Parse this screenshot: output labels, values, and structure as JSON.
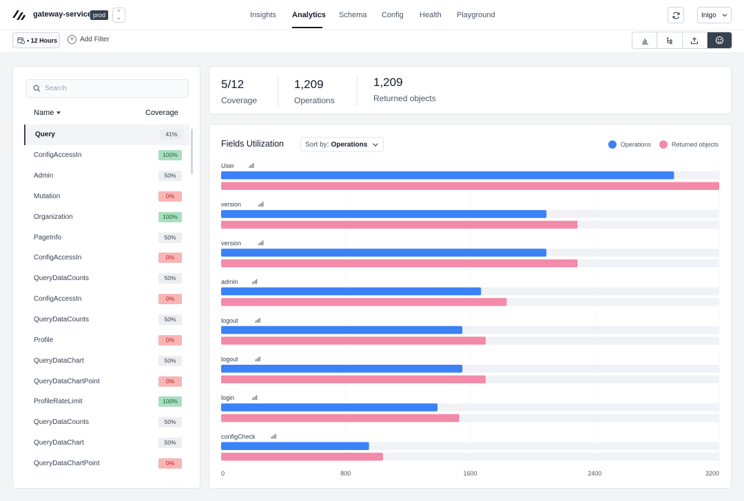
{
  "header": {
    "service_name": "gateway-service",
    "env_badge": "prod",
    "tabs": [
      {
        "label": "Insights",
        "active": false
      },
      {
        "label": "Analytics",
        "active": true
      },
      {
        "label": "Schema",
        "active": false
      },
      {
        "label": "Config",
        "active": false
      },
      {
        "label": "Health",
        "active": false
      },
      {
        "label": "Playground",
        "active": false
      }
    ],
    "user": "Inigo"
  },
  "filterbar": {
    "time_range": "• 12 Hours",
    "add_filter": "Add Filter"
  },
  "sidebar": {
    "search_placeholder": "Search",
    "col_name": "Name",
    "col_coverage": "Coverage",
    "items": [
      {
        "name": "Query",
        "coverage": "41%",
        "tone": "gray",
        "selected": true
      },
      {
        "name": "ConfigAccessIn",
        "coverage": "100%",
        "tone": "green"
      },
      {
        "name": "Admin",
        "coverage": "50%",
        "tone": "gray"
      },
      {
        "name": "Mutation",
        "coverage": "0%",
        "tone": "red"
      },
      {
        "name": "Organization",
        "coverage": "100%",
        "tone": "green"
      },
      {
        "name": "PageInfo",
        "coverage": "50%",
        "tone": "gray"
      },
      {
        "name": "ConfigAccessIn",
        "coverage": "0%",
        "tone": "red"
      },
      {
        "name": "QueryDataCounts",
        "coverage": "50%",
        "tone": "gray"
      },
      {
        "name": "ConfigAccessIn",
        "coverage": "0%",
        "tone": "red"
      },
      {
        "name": "QueryDataCounts",
        "coverage": "50%",
        "tone": "gray"
      },
      {
        "name": "Profile",
        "coverage": "0%",
        "tone": "red"
      },
      {
        "name": "QueryDataChart",
        "coverage": "50%",
        "tone": "gray"
      },
      {
        "name": "QueryDataChartPoint",
        "coverage": "0%",
        "tone": "red"
      },
      {
        "name": "ProfileRateLimit",
        "coverage": "100%",
        "tone": "green"
      },
      {
        "name": "QueryDataCounts",
        "coverage": "50%",
        "tone": "gray"
      },
      {
        "name": "QueryDataChart",
        "coverage": "50%",
        "tone": "gray"
      },
      {
        "name": "QueryDataChartPoint",
        "coverage": "0%",
        "tone": "red"
      }
    ]
  },
  "stats": [
    {
      "value": "5/12",
      "label": "Coverage"
    },
    {
      "value": "1,209",
      "label": "Operations"
    },
    {
      "value": "1,209",
      "label": "Returned objects"
    }
  ],
  "chart": {
    "title": "Fields Utilization",
    "sort_prefix": "Sort by:",
    "sort_value": "Operations",
    "colors": {
      "operations": "#3b82f6",
      "returned": "#f48aaa",
      "track": "#f1f2f6"
    }
  },
  "chart_data": {
    "type": "bar",
    "orientation": "horizontal",
    "categories": [
      "User",
      "version",
      "version",
      "admin",
      "logout",
      "logout",
      "login",
      "configCheck"
    ],
    "series": [
      {
        "name": "Operations",
        "values": [
          2910,
          2090,
          2090,
          1670,
          1550,
          1550,
          1390,
          950
        ]
      },
      {
        "name": "Returned objects",
        "values": [
          3200,
          2290,
          2290,
          1835,
          1700,
          1700,
          1530,
          1040
        ]
      }
    ],
    "xlim": [
      0,
      3200
    ],
    "xticks": [
      0,
      800,
      1600,
      2400,
      3200
    ],
    "grid": true,
    "legend": "top-right"
  }
}
